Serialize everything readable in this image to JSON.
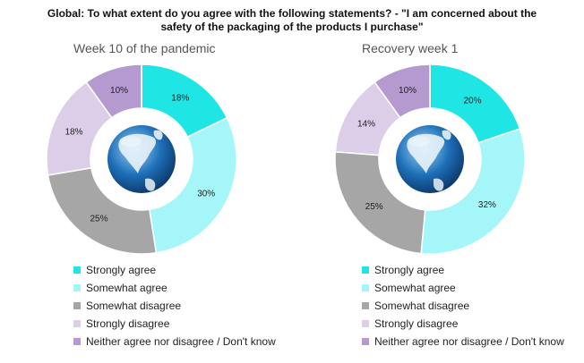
{
  "title_line1": "Global: To what extent do you agree with the following statements?  - \"I am concerned about the",
  "title_line2": "safety of the packaging of the products I purchase\"",
  "colors": {
    "strongly_agree": "#1fe5e5",
    "somewhat_agree": "#a4f6f8",
    "somewhat_disagree": "#a6a6a6",
    "strongly_disagree": "#dccde8",
    "neither": "#b59ad0",
    "globe_ocean": "#1d6fb8"
  },
  "legend": [
    "Strongly agree",
    "Somewhat agree",
    "Somewhat disagree",
    "Strongly disagree",
    "Neither agree nor disagree / Don't know"
  ],
  "chart_data": [
    {
      "type": "pie",
      "title": "Week 10 of the pandemic",
      "categories": [
        "Strongly agree",
        "Somewhat agree",
        "Somewhat disagree",
        "Strongly disagree",
        "Neither agree nor disagree / Don't know"
      ],
      "values": [
        18,
        30,
        25,
        18,
        10
      ],
      "labels": [
        "18%",
        "30%",
        "25%",
        "18%",
        "10%"
      ]
    },
    {
      "type": "pie",
      "title": "Recovery week 1",
      "categories": [
        "Strongly agree",
        "Somewhat agree",
        "Somewhat disagree",
        "Strongly disagree",
        "Neither agree nor disagree / Don't know"
      ],
      "values": [
        20,
        32,
        25,
        14,
        10
      ],
      "labels": [
        "20%",
        "32%",
        "25%",
        "14%",
        "10%"
      ]
    }
  ]
}
